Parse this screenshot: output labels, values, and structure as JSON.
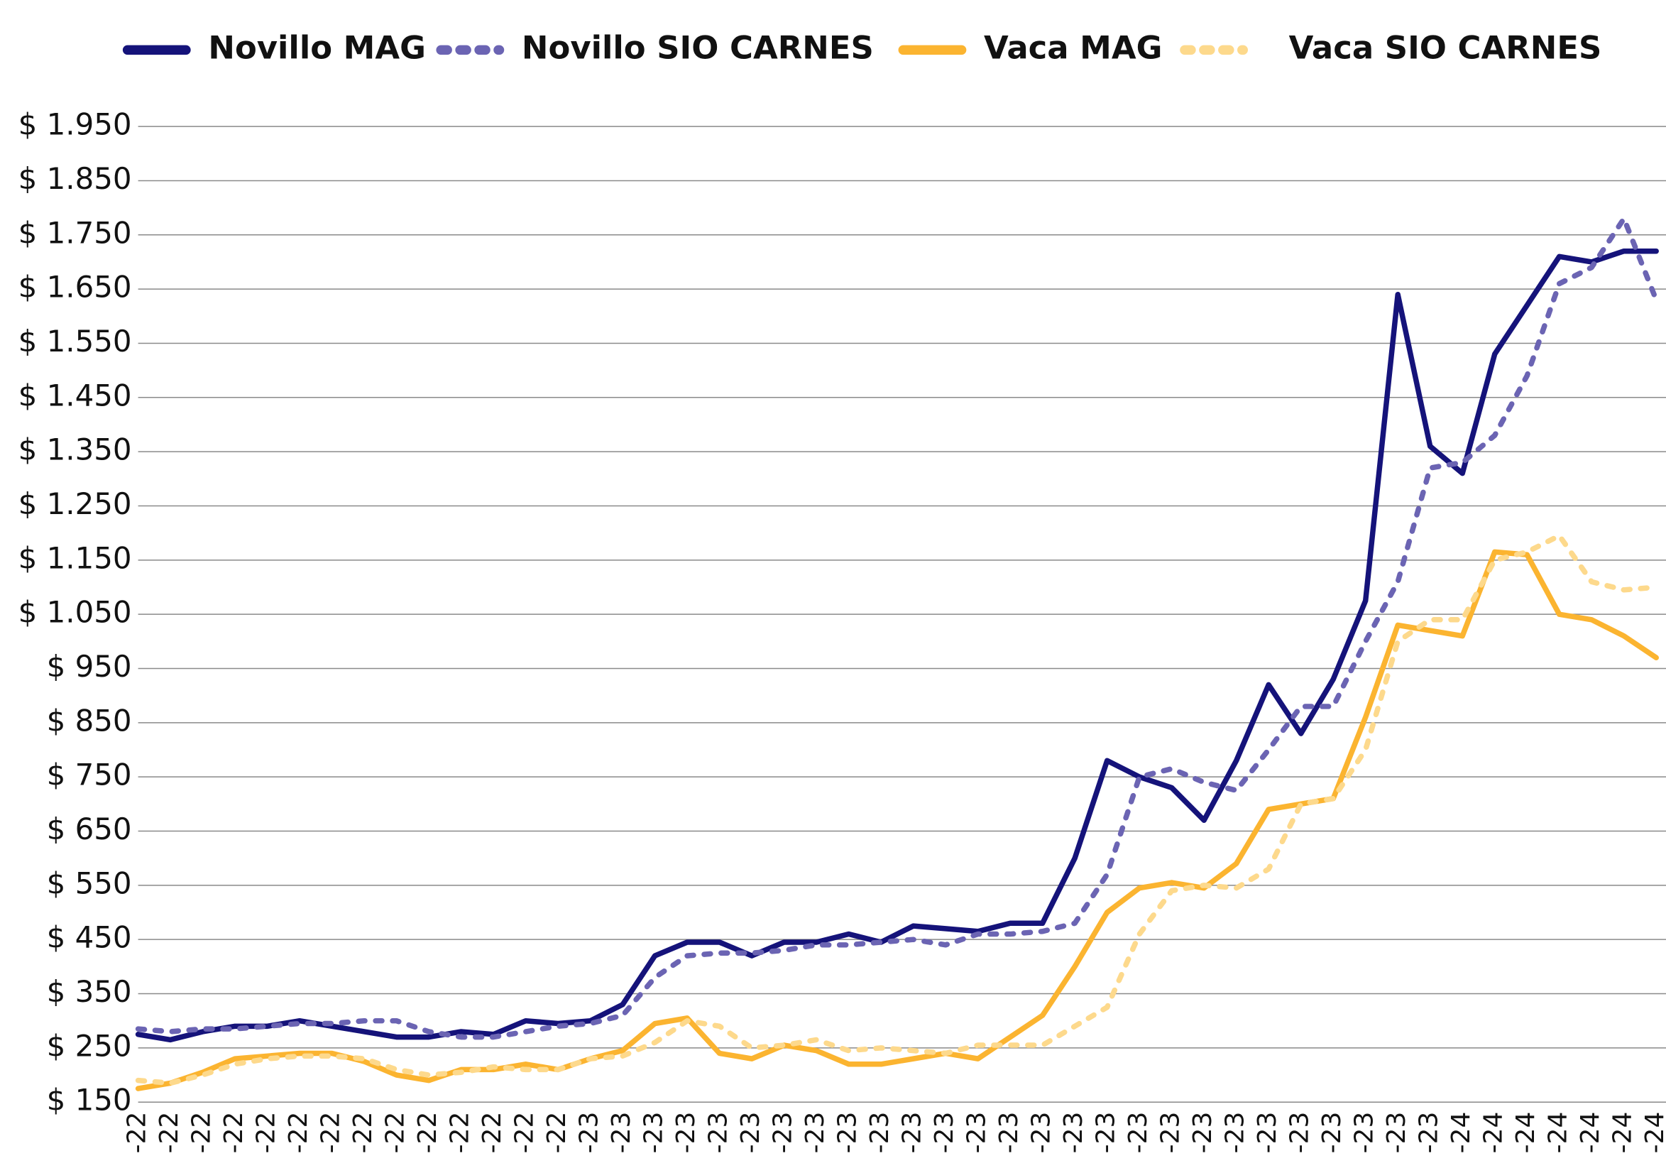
{
  "chart_data": {
    "type": "line",
    "categories": [
      "-22",
      "-22",
      "-22",
      "-22",
      "-22",
      "-22",
      "-22",
      "-22",
      "-22",
      "-22",
      "-22",
      "-22",
      "-22",
      "-22",
      "-23",
      "-23",
      "-23",
      "-23",
      "-23",
      "-23",
      "-23",
      "-23",
      "-23",
      "-23",
      "-23",
      "-23",
      "-23",
      "-23",
      "-23",
      "-23",
      "-23",
      "-23",
      "-23",
      "-23",
      "-23",
      "-23",
      "-23",
      "-23",
      "-23",
      "-23",
      "-23",
      "-24",
      "-24",
      "-24",
      "-24",
      "-24",
      "-24",
      "-24"
    ],
    "series": [
      {
        "name": "Novillo MAG",
        "color": "#15137a",
        "style": "solid",
        "values": [
          275,
          265,
          280,
          290,
          290,
          300,
          290,
          280,
          270,
          270,
          280,
          275,
          300,
          295,
          300,
          330,
          420,
          445,
          445,
          420,
          445,
          445,
          460,
          445,
          475,
          470,
          465,
          480,
          480,
          600,
          780,
          750,
          730,
          670,
          780,
          920,
          830,
          930,
          1075,
          1640,
          1360,
          1310,
          1530,
          1620,
          1710,
          1700,
          1720,
          1720
        ]
      },
      {
        "name": "Novillo SIO CARNES",
        "color": "#6b64b3",
        "style": "dotted",
        "values": [
          285,
          280,
          285,
          285,
          290,
          295,
          295,
          300,
          300,
          280,
          270,
          270,
          280,
          290,
          295,
          310,
          380,
          420,
          425,
          425,
          430,
          440,
          440,
          445,
          450,
          440,
          460,
          460,
          465,
          480,
          570,
          750,
          765,
          740,
          725,
          800,
          880,
          880,
          1000,
          1110,
          1320,
          1330,
          1380,
          1490,
          1660,
          1690,
          1780,
          1630
        ]
      },
      {
        "name": "Vaca MAG",
        "color": "#fbb430",
        "style": "solid",
        "values": [
          175,
          185,
          205,
          230,
          235,
          240,
          240,
          225,
          200,
          190,
          210,
          210,
          220,
          210,
          230,
          245,
          295,
          305,
          240,
          230,
          255,
          245,
          220,
          220,
          230,
          240,
          230,
          270,
          310,
          400,
          500,
          545,
          555,
          545,
          590,
          690,
          700,
          710,
          860,
          1030,
          1020,
          1010,
          1165,
          1160,
          1050,
          1040,
          1010,
          970
        ]
      },
      {
        "name": "Vaca SIO CARNES",
        "color": "#fdd98c",
        "style": "dotted",
        "values": [
          190,
          185,
          200,
          220,
          230,
          235,
          235,
          230,
          210,
          200,
          205,
          215,
          210,
          210,
          230,
          235,
          260,
          300,
          290,
          250,
          255,
          265,
          245,
          250,
          245,
          240,
          255,
          255,
          255,
          290,
          325,
          460,
          540,
          550,
          545,
          580,
          700,
          710,
          800,
          1000,
          1040,
          1040,
          1150,
          1165,
          1195,
          1110,
          1095,
          1100
        ]
      }
    ],
    "ylim": [
      150,
      1950
    ],
    "yticks": [
      {
        "value": 150,
        "label": "$ 150"
      },
      {
        "value": 250,
        "label": "$ 250"
      },
      {
        "value": 350,
        "label": "$ 350"
      },
      {
        "value": 450,
        "label": "$ 450"
      },
      {
        "value": 550,
        "label": "$ 550"
      },
      {
        "value": 650,
        "label": "$ 650"
      },
      {
        "value": 750,
        "label": "$ 750"
      },
      {
        "value": 850,
        "label": "$ 850"
      },
      {
        "value": 950,
        "label": "$ 950"
      },
      {
        "value": 1050,
        "label": "$ 1.050"
      },
      {
        "value": 1150,
        "label": "$ 1.150"
      },
      {
        "value": 1250,
        "label": "$ 1.250"
      },
      {
        "value": 1350,
        "label": "$ 1.350"
      },
      {
        "value": 1450,
        "label": "$ 1.450"
      },
      {
        "value": 1550,
        "label": "$ 1.550"
      },
      {
        "value": 1650,
        "label": "$ 1.650"
      },
      {
        "value": 1750,
        "label": "$ 1.750"
      },
      {
        "value": 1850,
        "label": "$ 1.850"
      },
      {
        "value": 1950,
        "label": "$ 1.950"
      }
    ],
    "grid": true,
    "legend": "top"
  }
}
